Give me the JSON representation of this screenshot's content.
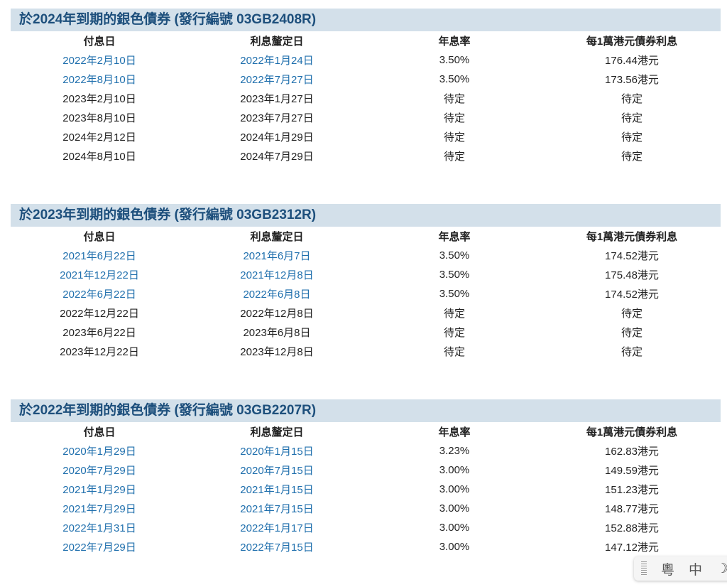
{
  "headers": [
    "付息日",
    "利息釐定日",
    "年息率",
    "每1萬港元債券利息"
  ],
  "sections": [
    {
      "title": "於2024年到期的銀色債券 (發行編號 03GB2408R)",
      "rows": [
        [
          "2022年2月10日",
          "2022年1月24日",
          "3.50%",
          "176.44港元",
          true
        ],
        [
          "2022年8月10日",
          "2022年7月27日",
          "3.50%",
          "173.56港元",
          true
        ],
        [
          "2023年2月10日",
          "2023年1月27日",
          "待定",
          "待定",
          false
        ],
        [
          "2023年8月10日",
          "2023年7月27日",
          "待定",
          "待定",
          false
        ],
        [
          "2024年2月12日",
          "2024年1月29日",
          "待定",
          "待定",
          false
        ],
        [
          "2024年8月10日",
          "2024年7月29日",
          "待定",
          "待定",
          false
        ]
      ]
    },
    {
      "title": "於2023年到期的銀色債券 (發行編號 03GB2312R)",
      "rows": [
        [
          "2021年6月22日",
          "2021年6月7日",
          "3.50%",
          "174.52港元",
          true
        ],
        [
          "2021年12月22日",
          "2021年12月8日",
          "3.50%",
          "175.48港元",
          true
        ],
        [
          "2022年6月22日",
          "2022年6月8日",
          "3.50%",
          "174.52港元",
          true
        ],
        [
          "2022年12月22日",
          "2022年12月8日",
          "待定",
          "待定",
          false
        ],
        [
          "2023年6月22日",
          "2023年6月8日",
          "待定",
          "待定",
          false
        ],
        [
          "2023年12月22日",
          "2023年12月8日",
          "待定",
          "待定",
          false
        ]
      ]
    },
    {
      "title": "於2022年到期的銀色債券 (發行編號 03GB2207R)",
      "rows": [
        [
          "2020年1月29日",
          "2020年1月15日",
          "3.23%",
          "162.83港元",
          true
        ],
        [
          "2020年7月29日",
          "2020年7月15日",
          "3.00%",
          "149.59港元",
          true
        ],
        [
          "2021年1月29日",
          "2021年1月15日",
          "3.00%",
          "151.23港元",
          true
        ],
        [
          "2021年7月29日",
          "2021年7月15日",
          "3.00%",
          "148.77港元",
          true
        ],
        [
          "2022年1月31日",
          "2022年1月17日",
          "3.00%",
          "152.88港元",
          true
        ],
        [
          "2022年7月29日",
          "2022年7月15日",
          "3.00%",
          "147.12港元",
          true
        ]
      ]
    }
  ],
  "ime": {
    "cantonese": "粵",
    "chinese": "中",
    "moon_icon": "moon-icon"
  }
}
